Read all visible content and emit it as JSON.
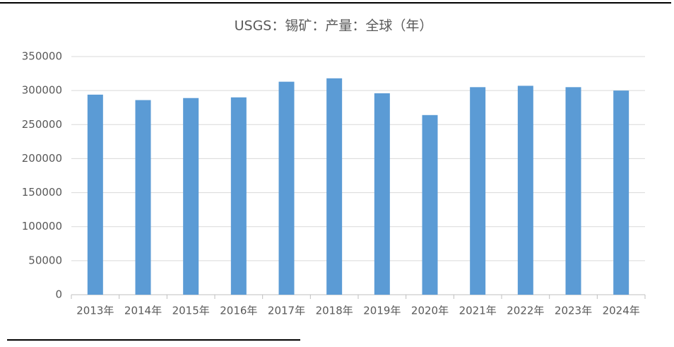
{
  "chart_data": {
    "type": "bar",
    "title": "USGS：锡矿：产量：全球（年）",
    "categories": [
      "2013年",
      "2014年",
      "2015年",
      "2016年",
      "2017年",
      "2018年",
      "2019年",
      "2020年",
      "2021年",
      "2022年",
      "2023年",
      "2024年"
    ],
    "values": [
      294000,
      286000,
      289000,
      290000,
      313000,
      318000,
      296000,
      264000,
      305000,
      307000,
      305000,
      300000
    ],
    "color": "#5b9bd5",
    "ylim": [
      0,
      350000
    ],
    "yticks": [
      0,
      50000,
      100000,
      150000,
      200000,
      250000,
      300000,
      350000
    ],
    "grid": true
  }
}
